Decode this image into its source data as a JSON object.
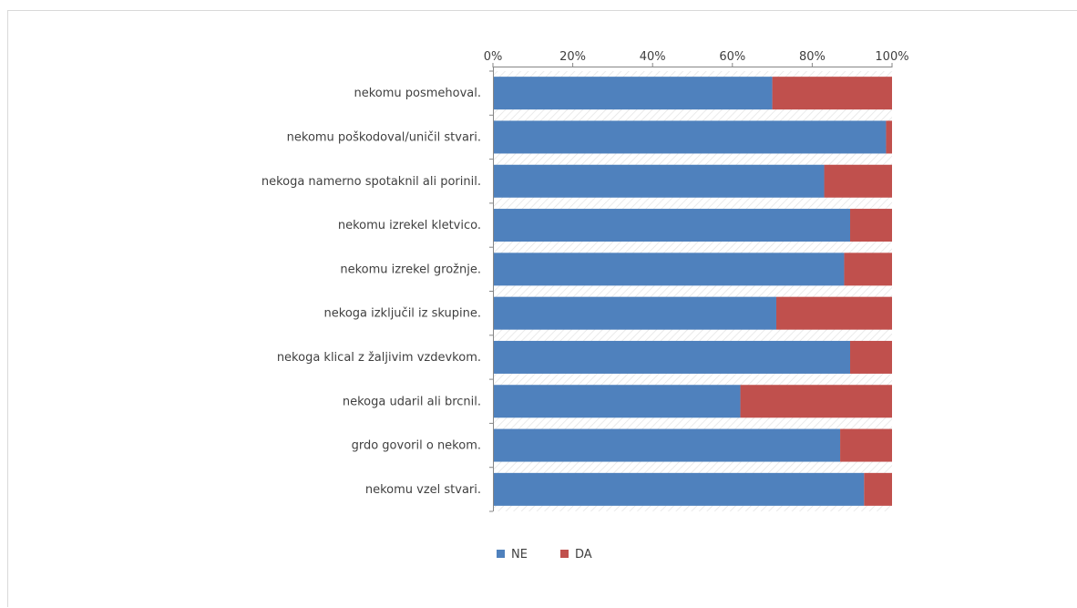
{
  "chart_data": {
    "type": "bar",
    "orientation": "horizontal",
    "stacked": "percent",
    "categories": [
      "nekomu posmehoval.",
      "nekomu poškodoval/uničil stvari.",
      "nekoga namerno spotaknil ali porinil.",
      "nekomu izrekel kletvico.",
      "nekomu izrekel grožnje.",
      "nekoga izključil iz skupine.",
      "nekoga klical z žaljivim vzdevkom.",
      "nekoga udaril ali brcnil.",
      "grdo govoril o nekom.",
      "nekomu vzel stvari."
    ],
    "series": [
      {
        "name": "NE",
        "color": "#4f81bd",
        "values": [
          70,
          98.5,
          83,
          89.5,
          88,
          71,
          89.5,
          62,
          87,
          93
        ]
      },
      {
        "name": "DA",
        "color": "#c0504d",
        "values": [
          30,
          1.5,
          17,
          10.5,
          12,
          29,
          10.5,
          38,
          13,
          7
        ]
      }
    ],
    "x_ticks": [
      "0%",
      "20%",
      "40%",
      "60%",
      "80%",
      "100%"
    ],
    "xlim": [
      0,
      100
    ],
    "x_axis_position": "top",
    "legend_position": "bottom",
    "title": "",
    "xlabel": "",
    "ylabel": ""
  }
}
